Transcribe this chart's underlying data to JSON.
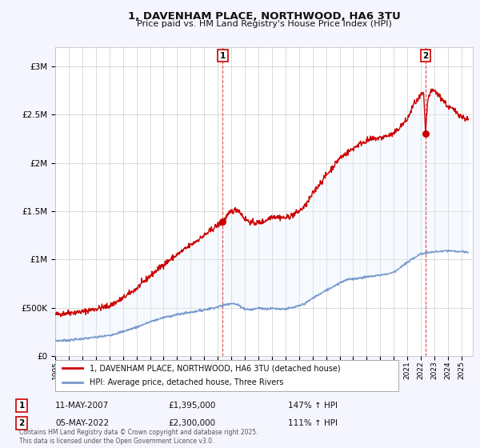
{
  "title": "1, DAVENHAM PLACE, NORTHWOOD, HA6 3TU",
  "subtitle": "Price paid vs. HM Land Registry's House Price Index (HPI)",
  "ylim": [
    0,
    3200000
  ],
  "yticks": [
    0,
    500000,
    1000000,
    1500000,
    2000000,
    2500000,
    3000000
  ],
  "ytick_labels": [
    "£0",
    "£500K",
    "£1M",
    "£1.5M",
    "£2M",
    "£2.5M",
    "£3M"
  ],
  "xlim_start": 1995.0,
  "xlim_end": 2025.83,
  "xticks": [
    1995,
    1996,
    1997,
    1998,
    1999,
    2000,
    2001,
    2002,
    2003,
    2004,
    2005,
    2006,
    2007,
    2008,
    2009,
    2010,
    2011,
    2012,
    2013,
    2014,
    2015,
    2016,
    2017,
    2018,
    2019,
    2020,
    2021,
    2022,
    2023,
    2024,
    2025
  ],
  "legend_entries": [
    "1, DAVENHAM PLACE, NORTHWOOD, HA6 3TU (detached house)",
    "HPI: Average price, detached house, Three Rivers"
  ],
  "legend_colors": [
    "#cc0000",
    "#6699cc"
  ],
  "annotation1": {
    "label": "1",
    "date": "11-MAY-2007",
    "price": "£1,395,000",
    "hpi": "147% ↑ HPI"
  },
  "annotation2": {
    "label": "2",
    "date": "05-MAY-2022",
    "price": "£2,300,000",
    "hpi": "111% ↑ HPI"
  },
  "bg_color": "#f5f5ff",
  "plot_bg_color": "#ffffff",
  "grid_color": "#cccccc",
  "footer": "Contains HM Land Registry data © Crown copyright and database right 2025.\nThis data is licensed under the Open Government Licence v3.0.",
  "red_line_color": "#cc0000",
  "blue_line_color": "#7799cc",
  "fill_color": "#ddeeff",
  "sale1_year": 2007.36,
  "sale1_price": 1395000,
  "sale2_year": 2022.34,
  "sale2_price": 2300000
}
